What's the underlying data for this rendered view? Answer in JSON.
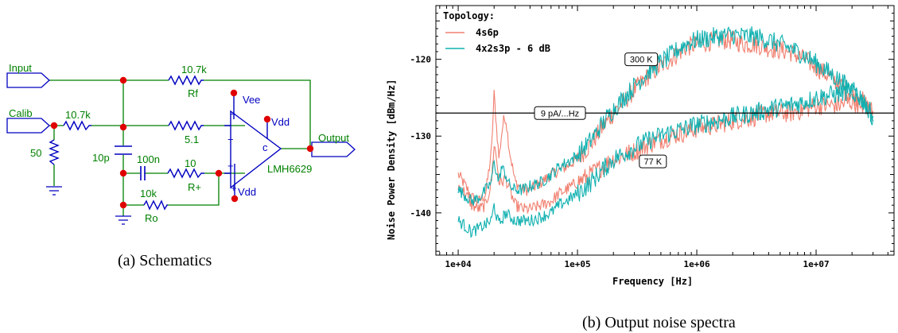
{
  "schematic": {
    "caption": "(a) Schematics",
    "ports": {
      "input": "Input",
      "calib": "Calib",
      "output": "Output"
    },
    "components": {
      "rf_value": "10.7k",
      "rf_name": "Rf",
      "rcal_value": "10.7k",
      "rterm_value": "50",
      "rg_value": "5.1",
      "cin_value": "10p",
      "cbyp_value": "100n",
      "rplus_value": "10",
      "rplus_name": "R+",
      "ro_value": "10k",
      "ro_name": "Ro",
      "opamp_name": "LMH6629",
      "vee_label": "Vee",
      "vdd_label": "Vdd",
      "vdd_bottom_label": "Vdd",
      "c_label": "c",
      "minus_label": "−",
      "plus_label": "+",
      "minus_sup_label": "−",
      "plus_sup_label": "+"
    },
    "colors": {
      "wire": "#008000",
      "component": "#0000c0",
      "node": "#e00000",
      "text_green": "#008000",
      "text_blue": "#0000c0"
    }
  },
  "chart_caption": "(b) Output noise spectra",
  "chart_data": {
    "type": "line",
    "xlabel": "Frequency [Hz]",
    "ylabel": "Noise Power Density [dBm/Hz]",
    "x_scale": "log",
    "xlim": [
      6500,
      45000000
    ],
    "ylim": [
      -145.5,
      -113
    ],
    "x_ticks": [
      "1e+04",
      "1e+05",
      "1e+06",
      "1e+07"
    ],
    "x_tick_values": [
      10000,
      100000,
      1000000,
      10000000
    ],
    "y_ticks": [
      "-120",
      "-130",
      "-140"
    ],
    "y_tick_values": [
      -120,
      -130,
      -140
    ],
    "legend": {
      "title": "Topology:",
      "placement": "top-left"
    },
    "series": [
      {
        "name": "4s6p",
        "color": "#f08070",
        "curves": [
          {
            "x": [
              10000,
              11000,
              12000,
              13000,
              15000,
              17000,
              19000,
              20000,
              21000,
              22000,
              23000,
              24000,
              25000,
              27000,
              30000,
              35000,
              40000,
              50000,
              60000,
              70000,
              80000,
              100000,
              130000,
              160000,
              200000,
              300000,
              400000,
              600000,
              800000,
              1000000,
              1500000,
              2000000,
              2500000,
              3000000,
              4000000,
              6000000,
              8000000,
              10000000,
              15000000,
              20000000,
              25000000,
              30000000
            ],
            "y": [
              -135,
              -136,
              -137,
              -138,
              -138.5,
              -137.5,
              -132,
              -124.5,
              -129,
              -133,
              -130,
              -128,
              -127.5,
              -132,
              -136,
              -137,
              -137,
              -136,
              -135,
              -134.5,
              -134,
              -133,
              -131,
              -129,
              -127,
              -124,
              -122,
              -120,
              -118.5,
              -118,
              -117.5,
              -117.5,
              -118,
              -118,
              -118.5,
              -119,
              -120,
              -121,
              -123,
              -124.5,
              -125.5,
              -127
            ]
          },
          {
            "x": [
              10000,
              11000,
              12000,
              13000,
              15000,
              17000,
              19000,
              20000,
              21000,
              22000,
              23000,
              25000,
              27000,
              30000,
              35000,
              40000,
              50000,
              60000,
              70000,
              80000,
              100000,
              130000,
              160000,
              200000,
              300000,
              400000,
              600000,
              800000,
              1000000,
              1500000,
              2000000,
              3000000,
              4000000,
              6000000,
              8000000,
              10000000,
              15000000,
              20000000,
              25000000,
              30000000
            ],
            "y": [
              -136.5,
              -137,
              -138,
              -139,
              -139.5,
              -139,
              -136,
              -131,
              -133,
              -136,
              -136,
              -135.5,
              -137,
              -139,
              -139.5,
              -139.5,
              -139,
              -138.5,
              -137.5,
              -137,
              -136,
              -135,
              -134,
              -133,
              -132,
              -131,
              -130,
              -129.5,
              -129,
              -128.5,
              -128,
              -127.5,
              -127,
              -127,
              -126.5,
              -126,
              -126,
              -125.5,
              -126,
              -127
            ]
          }
        ]
      },
      {
        "name": "4x2s3p - 6 dB",
        "color": "#10b0b0",
        "curves": [
          {
            "x": [
              10000,
              11000,
              12000,
              13000,
              15000,
              17000,
              19000,
              20000,
              21000,
              22000,
              23000,
              25000,
              27000,
              30000,
              35000,
              40000,
              50000,
              60000,
              70000,
              80000,
              100000,
              130000,
              160000,
              200000,
              300000,
              400000,
              600000,
              800000,
              1000000,
              1500000,
              2000000,
              2500000,
              3000000,
              4000000,
              6000000,
              8000000,
              10000000,
              15000000,
              20000000,
              25000000,
              30000000
            ],
            "y": [
              -137,
              -137.5,
              -138,
              -138.5,
              -138,
              -137,
              -136,
              -133,
              -135,
              -136,
              -134,
              -135,
              -136.5,
              -137,
              -137,
              -136.5,
              -136,
              -135,
              -134,
              -133.5,
              -132.5,
              -130.5,
              -128.5,
              -126.5,
              -123.5,
              -121.5,
              -119.5,
              -118,
              -117.5,
              -117,
              -116.8,
              -117,
              -117,
              -117.5,
              -118.5,
              -119.5,
              -120.5,
              -122.5,
              -124,
              -125.5,
              -127.5
            ]
          },
          {
            "x": [
              10000,
              11000,
              12000,
              13000,
              15000,
              17000,
              19000,
              20000,
              21000,
              22000,
              23000,
              25000,
              27000,
              30000,
              35000,
              40000,
              50000,
              60000,
              70000,
              80000,
              100000,
              130000,
              160000,
              200000,
              300000,
              400000,
              600000,
              800000,
              1000000,
              1500000,
              2000000,
              3000000,
              4000000,
              6000000,
              8000000,
              10000000,
              15000000,
              20000000,
              25000000,
              30000000
            ],
            "y": [
              -141,
              -141.5,
              -142,
              -142.5,
              -142,
              -141.5,
              -141,
              -139,
              -140.5,
              -141.5,
              -141,
              -140,
              -140.5,
              -141,
              -141,
              -141,
              -140.5,
              -140,
              -139,
              -138.5,
              -137.5,
              -136,
              -134.5,
              -133,
              -131.5,
              -130.5,
              -129.5,
              -129,
              -128.5,
              -128,
              -127.5,
              -127,
              -126.5,
              -126,
              -125.5,
              -125,
              -124.5,
              -124,
              -125.5,
              -127.5
            ]
          }
        ]
      }
    ],
    "reference_line": {
      "label": "9 pA/...Hz",
      "y": -127
    },
    "annotations": [
      {
        "text": "300 K",
        "x": 250000,
        "y": -120
      },
      {
        "text": "77 K",
        "x": 330000,
        "y": -133.3
      }
    ],
    "grid": false
  }
}
